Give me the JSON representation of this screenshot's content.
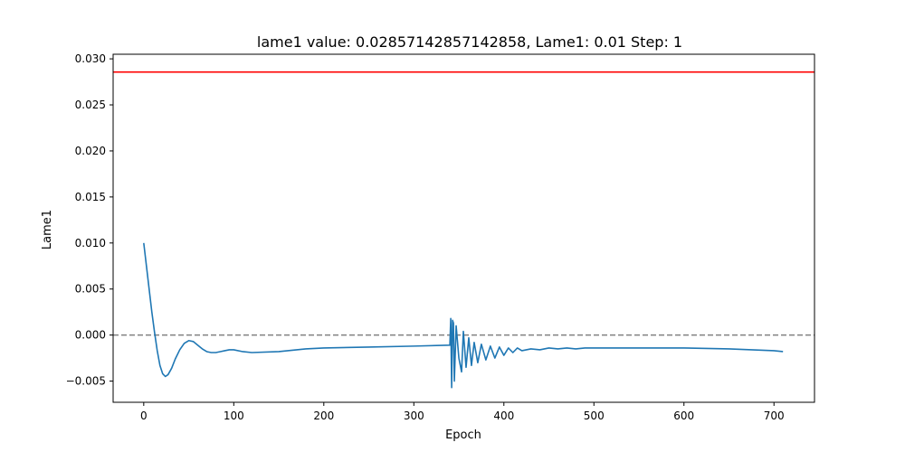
{
  "chart_data": {
    "type": "line",
    "title": "lame1 value: 0.02857142857142858, Lame1: 0.01 Step: 1",
    "xlabel": "Epoch",
    "ylabel": "Lame1",
    "xlim": [
      -34,
      745
    ],
    "ylim": [
      -0.0073,
      0.0305
    ],
    "x_ticks": [
      0,
      100,
      200,
      300,
      400,
      500,
      600,
      700
    ],
    "x_tick_labels": [
      "0",
      "100",
      "200",
      "300",
      "400",
      "500",
      "600",
      "700"
    ],
    "y_ticks": [
      -0.005,
      0.0,
      0.005,
      0.01,
      0.015,
      0.02,
      0.025,
      0.03
    ],
    "y_tick_labels": [
      "−0.005",
      "0.000",
      "0.005",
      "0.010",
      "0.015",
      "0.020",
      "0.025",
      "0.030"
    ],
    "grid": false,
    "reference_lines": [
      {
        "orientation": "horizontal",
        "y": 0.02857142857142858,
        "color": "#ff0000",
        "style": "solid"
      },
      {
        "orientation": "horizontal",
        "y": 0.0,
        "color": "#808080",
        "style": "dashed"
      }
    ],
    "series": [
      {
        "color": "#1f77b4",
        "points": [
          [
            0,
            0.01
          ],
          [
            3,
            0.0075
          ],
          [
            6,
            0.005
          ],
          [
            9,
            0.0025
          ],
          [
            12,
            0.0003
          ],
          [
            15,
            -0.0017
          ],
          [
            18,
            -0.0033
          ],
          [
            21,
            -0.0042
          ],
          [
            24,
            -0.0045
          ],
          [
            27,
            -0.0043
          ],
          [
            31,
            -0.0036
          ],
          [
            35,
            -0.0026
          ],
          [
            40,
            -0.0016
          ],
          [
            45,
            -0.0009
          ],
          [
            50,
            -0.0006
          ],
          [
            55,
            -0.0007
          ],
          [
            60,
            -0.0011
          ],
          [
            65,
            -0.0015
          ],
          [
            70,
            -0.0018
          ],
          [
            75,
            -0.0019
          ],
          [
            80,
            -0.0019
          ],
          [
            85,
            -0.0018
          ],
          [
            90,
            -0.0017
          ],
          [
            95,
            -0.0016
          ],
          [
            100,
            -0.0016
          ],
          [
            110,
            -0.0018
          ],
          [
            120,
            -0.0019
          ],
          [
            150,
            -0.0018
          ],
          [
            180,
            -0.0015
          ],
          [
            200,
            -0.0014
          ],
          [
            250,
            -0.0013
          ],
          [
            300,
            -0.0012
          ],
          [
            340,
            -0.0011
          ],
          [
            341,
            0.0018
          ],
          [
            342,
            -0.0057
          ],
          [
            343,
            0.0016
          ],
          [
            344,
            0.0013
          ],
          [
            345,
            -0.005
          ],
          [
            347,
            0.001
          ],
          [
            350,
            -0.0025
          ],
          [
            353,
            -0.004
          ],
          [
            355,
            0.0004
          ],
          [
            358,
            -0.0035
          ],
          [
            361,
            -0.0003
          ],
          [
            364,
            -0.0033
          ],
          [
            367,
            -0.0008
          ],
          [
            371,
            -0.003
          ],
          [
            375,
            -0.001
          ],
          [
            380,
            -0.0027
          ],
          [
            385,
            -0.0012
          ],
          [
            390,
            -0.0025
          ],
          [
            395,
            -0.0013
          ],
          [
            400,
            -0.0022
          ],
          [
            405,
            -0.0014
          ],
          [
            410,
            -0.0019
          ],
          [
            415,
            -0.0014
          ],
          [
            420,
            -0.0017
          ],
          [
            430,
            -0.0015
          ],
          [
            440,
            -0.0016
          ],
          [
            450,
            -0.0014
          ],
          [
            460,
            -0.0015
          ],
          [
            470,
            -0.0014
          ],
          [
            480,
            -0.0015
          ],
          [
            490,
            -0.0014
          ],
          [
            500,
            -0.0014
          ],
          [
            520,
            -0.0014
          ],
          [
            550,
            -0.0014
          ],
          [
            600,
            -0.0014
          ],
          [
            650,
            -0.0015
          ],
          [
            700,
            -0.0017
          ],
          [
            710,
            -0.0018
          ]
        ]
      }
    ]
  }
}
